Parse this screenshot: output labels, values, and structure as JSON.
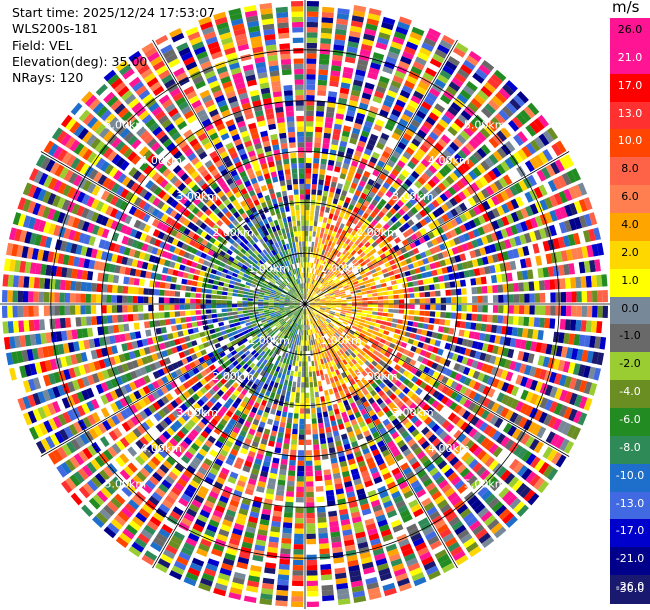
{
  "info": {
    "start_time": "Start time: 2025/12/24 17:53:07",
    "station": "WLS200s-181",
    "field": "Field: VEL",
    "elevation": "Elevation(deg): 35.00",
    "nrays": "NRays: 120"
  },
  "colorbar": {
    "unit": "m/s",
    "ticks": [
      "26.0",
      "21.0",
      "17.0",
      "13.0",
      "10.0",
      "8.0",
      "6.0",
      "4.0",
      "2.0",
      "1.0",
      "0.0",
      "-1.0",
      "-2.0",
      "-4.0",
      "-6.0",
      "-8.0",
      "-10.0",
      "-13.0",
      "-17.0",
      "-21.0",
      "-26.0",
      "-30.0"
    ],
    "colors": [
      "#ff1493",
      "#ff1493",
      "#ff0000",
      "#ff3030",
      "#ff4500",
      "#ff6347",
      "#ff7f50",
      "#ffa500",
      "#ffd700",
      "#ffff00",
      "#778899",
      "#696969",
      "#9acd32",
      "#6b8e23",
      "#228b22",
      "#2e8b57",
      "#1e6fcc",
      "#4169e1",
      "#0000cd",
      "#00008b",
      "#191970"
    ]
  },
  "chart_data": {
    "type": "heatmap",
    "subtype": "radar PPI (polar), velocity field",
    "field": "VEL",
    "unit": "m/s",
    "nrays": 120,
    "elevation_deg": 35.0,
    "range_rings_km": [
      1.0,
      2.0,
      3.0,
      4.0,
      5.0
    ],
    "ring_labels": [
      "1.00km",
      "2.00km",
      "3.00km",
      "4.00km",
      "5.00km"
    ],
    "max_range_km": 6.0,
    "color_levels": [
      -30,
      -26,
      -21,
      -17,
      -13,
      -10,
      -8,
      -6,
      -4,
      -2,
      -1,
      0,
      1,
      2,
      4,
      6,
      8,
      10,
      13,
      17,
      21,
      26
    ],
    "pattern": "near-range (< ~2 km): positive (yellow/orange/red) to the east, negative (green/blue/navy) to the west; beyond ~2 km mostly noisy multicolor"
  }
}
